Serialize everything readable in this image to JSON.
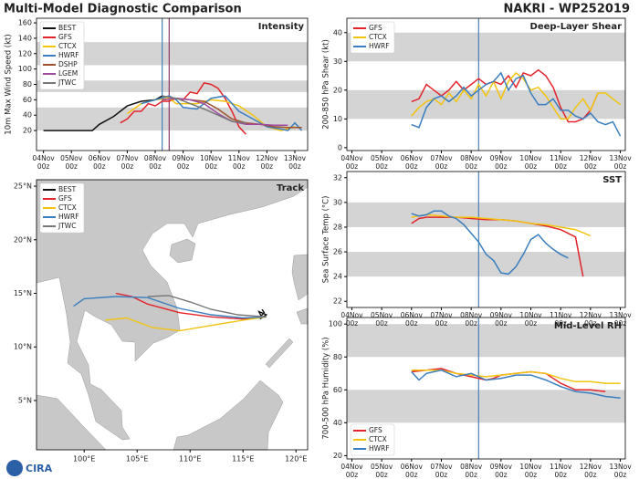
{
  "header": {
    "title": "Multi-Model Diagnostic Comparison",
    "storm": "NAKRI - WP252019",
    "logo": "CIRA"
  },
  "chart_data": [
    {
      "type": "line",
      "title": "Intensity",
      "ylabel": "10m Max Wind Speed (kt)",
      "xlim": [
        -6,
        227
      ],
      "ylim": [
        -6,
        166
      ],
      "yticks": [
        20,
        40,
        60,
        80,
        100,
        120,
        140,
        160
      ],
      "xticks": [
        {
          "value": 0,
          "label": "04Nov 00z"
        },
        {
          "value": 24,
          "label": "05Nov 00z"
        },
        {
          "value": 48,
          "label": "06Nov 00z"
        },
        {
          "value": 72,
          "label": "07Nov 00z"
        },
        {
          "value": 96,
          "label": "08Nov 00z"
        },
        {
          "value": 120,
          "label": "09Nov 00z"
        },
        {
          "value": 144,
          "label": "10Nov 00z"
        },
        {
          "value": 168,
          "label": "11Nov 00z"
        },
        {
          "value": 192,
          "label": "12Nov 00z"
        },
        {
          "value": 216,
          "label": "13Nov 00z"
        }
      ],
      "bands": [
        [
          20,
          50
        ],
        [
          70,
          85
        ],
        [
          105,
          135
        ]
      ],
      "vlines": [
        {
          "x": 102,
          "color": "#4a7fb5"
        },
        {
          "x": 108,
          "color": "#8b3a6b"
        }
      ],
      "legend": "upper left",
      "series": [
        {
          "name": "BEST",
          "color": "#111111",
          "x": [
            0,
            12,
            24,
            36,
            42,
            48,
            60,
            72,
            84,
            96,
            102
          ],
          "values": [
            20,
            20,
            20,
            20,
            20,
            28,
            38,
            52,
            58,
            60,
            65
          ]
        },
        {
          "name": "GFS",
          "color": "#e3242b",
          "x": [
            66,
            72,
            78,
            84,
            90,
            96,
            102,
            108,
            114,
            120,
            126,
            132,
            138,
            144,
            150,
            156,
            162,
            168,
            174
          ],
          "values": [
            30,
            35,
            45,
            45,
            55,
            52,
            58,
            58,
            62,
            60,
            70,
            68,
            82,
            80,
            75,
            62,
            45,
            25,
            15
          ]
        },
        {
          "name": "CTCX",
          "color": "#f2c40f",
          "x": [
            72,
            84,
            96,
            108,
            114,
            120,
            132,
            144,
            156,
            168,
            180,
            192,
            204,
            216
          ],
          "values": [
            42,
            55,
            60,
            62,
            55,
            55,
            55,
            60,
            58,
            52,
            40,
            25,
            20,
            25
          ]
        },
        {
          "name": "HWRF",
          "color": "#3a7ebf",
          "x": [
            84,
            96,
            108,
            114,
            120,
            132,
            144,
            156,
            168,
            180,
            192,
            204,
            210,
            216,
            222
          ],
          "values": [
            55,
            60,
            65,
            60,
            50,
            48,
            62,
            65,
            45,
            35,
            25,
            22,
            20,
            30,
            20
          ]
        },
        {
          "name": "DSHP",
          "color": "#a0522d",
          "x": [
            102,
            114,
            126,
            138,
            150,
            162,
            174,
            186,
            198,
            210,
            222
          ],
          "values": [
            60,
            62,
            60,
            58,
            48,
            35,
            30,
            28,
            25,
            24,
            24
          ]
        },
        {
          "name": "LGEM",
          "color": "#a04aa0",
          "x": [
            102,
            114,
            126,
            138,
            150,
            162,
            174,
            186,
            198,
            210
          ],
          "values": [
            60,
            62,
            60,
            55,
            42,
            32,
            28,
            28,
            27,
            27
          ]
        },
        {
          "name": "JTWC",
          "color": "#777777",
          "x": [
            102,
            114,
            126,
            138,
            150,
            162,
            174
          ],
          "values": [
            65,
            62,
            55,
            48,
            40,
            32,
            30
          ]
        }
      ]
    },
    {
      "type": "track",
      "title": "Track",
      "xlim": [
        95.5,
        121.1
      ],
      "ylim": [
        0.4,
        25.6
      ],
      "xticks": [
        {
          "value": 100,
          "label": "100°E"
        },
        {
          "value": 105,
          "label": "105°E"
        },
        {
          "value": 110,
          "label": "110°E"
        },
        {
          "value": 115,
          "label": "115°E"
        },
        {
          "value": 120,
          "label": "120°E"
        }
      ],
      "yticks": [
        {
          "value": 5,
          "label": "5°N"
        },
        {
          "value": 10,
          "label": "10°N"
        },
        {
          "value": 15,
          "label": "15°N"
        },
        {
          "value": 20,
          "label": "20°N"
        },
        {
          "value": 25,
          "label": "25°N"
        }
      ],
      "legend": "upper left",
      "series": [
        {
          "name": "BEST",
          "color": "#111111",
          "lon": [
            116.8,
            117.0,
            116.7,
            116.5,
            117.2,
            116.9,
            116.6
          ],
          "lat": [
            13.5,
            13.2,
            12.9,
            13.3,
            13.0,
            12.8,
            12.6
          ]
        },
        {
          "name": "GFS",
          "color": "#e3242b",
          "lon": [
            117.2,
            115.0,
            112.0,
            109.0,
            106.0,
            104.5,
            103.0
          ],
          "lat": [
            12.8,
            12.6,
            12.8,
            13.2,
            14.0,
            14.7,
            15.0
          ]
        },
        {
          "name": "CTCX",
          "color": "#f2c40f",
          "lon": [
            117.2,
            115.0,
            112.0,
            109.0,
            106.5,
            104.0,
            102.0
          ],
          "lat": [
            12.8,
            12.5,
            12.0,
            11.5,
            11.8,
            12.7,
            12.5
          ]
        },
        {
          "name": "HWRF",
          "color": "#3a7ebf",
          "lon": [
            117.2,
            115.0,
            112.0,
            109.0,
            106.0,
            103.0,
            100.0,
            99.0
          ],
          "lat": [
            12.8,
            12.7,
            13.0,
            13.6,
            14.6,
            14.7,
            14.5,
            13.8
          ]
        },
        {
          "name": "JTWC",
          "color": "#777777",
          "lon": [
            117.2,
            114.5,
            112.0,
            110.0,
            108.0,
            106.0
          ],
          "lat": [
            12.8,
            13.0,
            13.5,
            14.2,
            14.8,
            14.7
          ]
        }
      ]
    },
    {
      "type": "line",
      "title": "Deep-Layer Shear",
      "ylabel": "200-850 hPa Shear (kt)",
      "xlim": [
        -4,
        220
      ],
      "ylim": [
        -1,
        45
      ],
      "yticks": [
        0,
        10,
        20,
        30,
        40
      ],
      "xticks": [
        {
          "value": 0,
          "label": "04Nov 00z"
        },
        {
          "value": 24,
          "label": "05Nov 00z"
        },
        {
          "value": 48,
          "label": "06Nov 00z"
        },
        {
          "value": 72,
          "label": "07Nov 00z"
        },
        {
          "value": 96,
          "label": "08Nov 00z"
        },
        {
          "value": 120,
          "label": "09Nov 00z"
        },
        {
          "value": 144,
          "label": "10Nov 00z"
        },
        {
          "value": 168,
          "label": "11Nov 00z"
        },
        {
          "value": 192,
          "label": "12Nov 00z"
        },
        {
          "value": 216,
          "label": "13Nov 00z"
        }
      ],
      "bands": [
        [
          10,
          20
        ],
        [
          30,
          40
        ]
      ],
      "vlines": [
        {
          "x": 102,
          "color": "#4a7fb5"
        }
      ],
      "legend": "upper left",
      "series": [
        {
          "name": "GFS",
          "color": "#e3242b",
          "x": [
            48,
            54,
            60,
            66,
            72,
            78,
            84,
            90,
            96,
            102,
            108,
            114,
            120,
            126,
            132,
            138,
            144,
            150,
            156,
            162,
            168,
            174,
            180,
            186,
            192,
            198
          ],
          "values": [
            16,
            17,
            22,
            20,
            18,
            20,
            23,
            20,
            22,
            24,
            22,
            23,
            22,
            25,
            21,
            26,
            25,
            27,
            25,
            21,
            14,
            9,
            9,
            10,
            13,
            19
          ]
        },
        {
          "name": "CTCX",
          "color": "#f2c40f",
          "x": [
            48,
            54,
            60,
            66,
            72,
            78,
            84,
            90,
            96,
            102,
            108,
            114,
            120,
            126,
            132,
            138,
            144,
            150,
            156,
            162,
            168,
            174,
            180,
            186,
            192,
            198,
            204,
            210,
            216
          ],
          "values": [
            11,
            14,
            16,
            17,
            15,
            19,
            16,
            20,
            17,
            22,
            18,
            23,
            17,
            23,
            26,
            24,
            20,
            21,
            18,
            14,
            10,
            10,
            14,
            17,
            13,
            19,
            19,
            17,
            15
          ]
        },
        {
          "name": "HWRF",
          "color": "#3a7ebf",
          "x": [
            48,
            54,
            60,
            66,
            72,
            78,
            84,
            90,
            96,
            102,
            108,
            114,
            120,
            126,
            132,
            138,
            144,
            150,
            156,
            162,
            168,
            174,
            180,
            186,
            192,
            198,
            204,
            210,
            216
          ],
          "values": [
            8,
            7,
            14,
            17,
            18,
            16,
            18,
            21,
            18,
            20,
            22,
            23,
            26,
            20,
            24,
            25,
            19,
            15,
            15,
            17,
            13,
            13,
            11,
            10,
            12,
            9,
            8,
            9,
            4
          ]
        }
      ]
    },
    {
      "type": "line",
      "title": "SST",
      "ylabel": "Sea Surface Temp (°C)",
      "xlim": [
        -4,
        220
      ],
      "ylim": [
        21.5,
        32.5
      ],
      "yticks": [
        22,
        24,
        26,
        28,
        30,
        32
      ],
      "xticks": [
        {
          "value": 0,
          "label": "04Nov 00z"
        },
        {
          "value": 24,
          "label": "05Nov 00z"
        },
        {
          "value": 48,
          "label": "06Nov 00z"
        },
        {
          "value": 72,
          "label": "07Nov 00z"
        },
        {
          "value": 96,
          "label": "08Nov 00z"
        },
        {
          "value": 120,
          "label": "09Nov 00z"
        },
        {
          "value": 144,
          "label": "10Nov 00z"
        },
        {
          "value": 168,
          "label": "11Nov 00z"
        },
        {
          "value": 192,
          "label": "12Nov 00z"
        },
        {
          "value": 216,
          "label": "13Nov 00z"
        }
      ],
      "bands": [
        [
          24,
          26
        ],
        [
          28,
          30
        ]
      ],
      "vlines": [
        {
          "x": 102,
          "color": "#4a7fb5"
        }
      ],
      "series": [
        {
          "color": "#e3242b",
          "x": [
            48,
            54,
            60,
            72,
            84,
            96,
            108,
            120,
            132,
            144,
            156,
            168,
            174,
            180,
            186
          ],
          "values": [
            28.3,
            28.7,
            28.8,
            28.8,
            28.8,
            28.7,
            28.6,
            28.6,
            28.5,
            28.3,
            28.1,
            27.8,
            27.5,
            27.2,
            24
          ]
        },
        {
          "color": "#f2c40f",
          "x": [
            48,
            60,
            72,
            84,
            96,
            108,
            120,
            132,
            144,
            156,
            168,
            180,
            192
          ],
          "values": [
            28.8,
            29.0,
            28.9,
            28.8,
            28.8,
            28.7,
            28.6,
            28.5,
            28.3,
            28.2,
            28.0,
            27.8,
            27.3
          ]
        },
        {
          "color": "#3a7ebf",
          "x": [
            48,
            54,
            60,
            66,
            72,
            78,
            84,
            90,
            96,
            102,
            108,
            114,
            120,
            126,
            132,
            138,
            144,
            150,
            156,
            162,
            168,
            174
          ],
          "values": [
            29.1,
            28.9,
            29.0,
            29.3,
            29.3,
            28.9,
            28.7,
            28.2,
            27.5,
            26.8,
            25.8,
            25.3,
            24.3,
            24.2,
            24.8,
            25.8,
            27.0,
            27.4,
            26.7,
            26.2,
            25.8,
            25.5
          ]
        }
      ]
    },
    {
      "type": "line",
      "title": "Mid-Level RH",
      "ylabel": "700-500 hPa Humidity (%)",
      "xlim": [
        -4,
        220
      ],
      "ylim": [
        18,
        104
      ],
      "yticks": [
        20,
        40,
        60,
        80,
        100
      ],
      "xticks": [
        {
          "value": 0,
          "label": "04Nov 00z"
        },
        {
          "value": 24,
          "label": "05Nov 00z"
        },
        {
          "value": 48,
          "label": "06Nov 00z"
        },
        {
          "value": 72,
          "label": "07Nov 00z"
        },
        {
          "value": 96,
          "label": "08Nov 00z"
        },
        {
          "value": 120,
          "label": "09Nov 00z"
        },
        {
          "value": 144,
          "label": "10Nov 00z"
        },
        {
          "value": 168,
          "label": "11Nov 00z"
        },
        {
          "value": 192,
          "label": "12Nov 00z"
        },
        {
          "value": 216,
          "label": "13Nov 00z"
        }
      ],
      "bands": [
        [
          40,
          60
        ],
        [
          80,
          100
        ]
      ],
      "vlines": [
        {
          "x": 102,
          "color": "#4a7fb5"
        }
      ],
      "legend": "lower left",
      "series": [
        {
          "name": "GFS",
          "color": "#e3242b",
          "x": [
            48,
            60,
            72,
            84,
            96,
            108,
            114,
            120,
            132,
            144,
            156,
            168,
            180,
            192,
            204
          ],
          "values": [
            71,
            72,
            73,
            70,
            68,
            66,
            67,
            69,
            70,
            71,
            70,
            64,
            60,
            60,
            59
          ]
        },
        {
          "name": "CTCX",
          "color": "#f2c40f",
          "x": [
            48,
            60,
            72,
            84,
            96,
            108,
            120,
            132,
            144,
            156,
            168,
            180,
            192,
            204,
            216
          ],
          "values": [
            72,
            72,
            72,
            70,
            69,
            68,
            69,
            70,
            71,
            70,
            67,
            65,
            65,
            64,
            64
          ]
        },
        {
          "name": "HWRF",
          "color": "#3a7ebf",
          "x": [
            48,
            54,
            60,
            72,
            84,
            96,
            108,
            120,
            132,
            144,
            156,
            168,
            180,
            192,
            204,
            216
          ],
          "values": [
            71,
            66,
            70,
            72,
            68,
            70,
            66,
            67,
            69,
            69,
            66,
            62,
            59,
            58,
            56,
            55
          ]
        }
      ]
    }
  ]
}
